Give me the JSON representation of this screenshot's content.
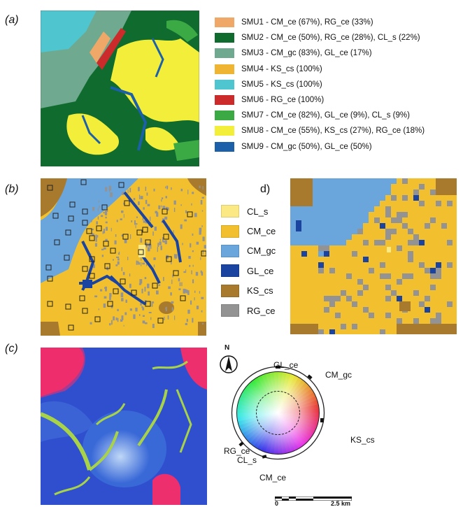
{
  "panels": {
    "a": {
      "label": "(a)"
    },
    "b": {
      "label": "(b)"
    },
    "c": {
      "label": "(c)"
    },
    "d": {
      "label": "d)"
    }
  },
  "legend_smu": [
    {
      "label": "SMU1 - CM_ce (67%), RG_ce (33%)",
      "color": "#f0a868"
    },
    {
      "label": "SMU2 - CM_ce (50%), RG_ce (28%), CL_s (22%)",
      "color": "#0f6b2e"
    },
    {
      "label": "SMU3 - CM_gc (83%), GL_ce (17%)",
      "color": "#6fa98f"
    },
    {
      "label": "SMU4 - KS_cs (100%)",
      "color": "#f0b433"
    },
    {
      "label": "SMU5 - KS_cs (100%)",
      "color": "#4fc6cf"
    },
    {
      "label": "SMU6 - RG_ce (100%)",
      "color": "#cc2b2b"
    },
    {
      "label": "SMU7 - CM_ce (82%), GL_ce (9%), CL_s (9%)",
      "color": "#3caa44"
    },
    {
      "label": "SMU8 - CM_ce (55%), KS_cs (27%), RG_ce (18%)",
      "color": "#f2ee3a"
    },
    {
      "label": "SMU9 - CM_gc (50%), GL_ce (50%)",
      "color": "#1b60a8"
    }
  ],
  "legend_soil": [
    {
      "label": "CL_s",
      "color": "#fbe985"
    },
    {
      "label": "CM_ce",
      "color": "#f2c02e"
    },
    {
      "label": "CM_gc",
      "color": "#6aa6dc"
    },
    {
      "label": "GL_ce",
      "color": "#1a44a0"
    },
    {
      "label": "KS_cs",
      "color": "#a87a2d"
    },
    {
      "label": "RG_ce",
      "color": "#939393"
    }
  ],
  "colors": {
    "cm_ce": "#f2c02e",
    "rg_ce": "#939393",
    "cm_gc": "#6aa6dc",
    "gl_ce": "#1a44a0",
    "ks_cs": "#a87a2d",
    "cl_s": "#fbe985",
    "c_blue": "#2f4fcf",
    "c_pink": "#ee2f6d",
    "c_green": "#a8d248",
    "c_light": "#9ac6ec"
  },
  "compass": {
    "north": "N"
  },
  "wheel": {
    "labels": {
      "gl_ce": "GL_ce",
      "cm_gc": "CM_gc",
      "ks_cs": "KS_cs",
      "rg_ce": "RG_ce",
      "cl_s": "CL_s",
      "cm_ce": "CM_ce"
    }
  },
  "scale": {
    "start": "0",
    "end": "2.5 km"
  }
}
